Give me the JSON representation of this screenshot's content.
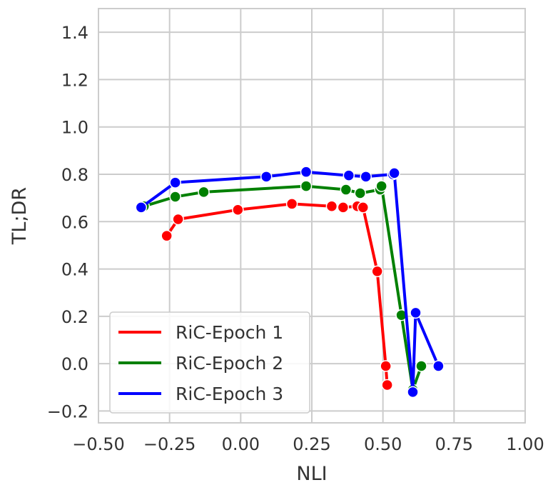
{
  "chart_data": {
    "type": "line",
    "xlabel": "NLI",
    "ylabel": "TL;DR",
    "xlim": [
      -0.5,
      1.0
    ],
    "ylim": [
      -0.25,
      1.5
    ],
    "xticks": [
      -0.5,
      -0.25,
      0.0,
      0.25,
      0.5,
      0.75,
      1.0
    ],
    "xtick_labels": [
      "−0.50",
      "−0.25",
      "0.00",
      "0.25",
      "0.50",
      "0.75",
      "1.00"
    ],
    "yticks": [
      -0.2,
      0.0,
      0.2,
      0.4,
      0.6,
      0.8,
      1.0,
      1.2,
      1.4
    ],
    "ytick_labels": [
      "−0.2",
      "0.0",
      "0.2",
      "0.4",
      "0.6",
      "0.8",
      "1.0",
      "1.2",
      "1.4"
    ],
    "grid": true,
    "legend_position": "bottom-left",
    "series": [
      {
        "name": "RiC-Epoch 1",
        "color": "#ff0000",
        "x": [
          -0.26,
          -0.22,
          -0.01,
          0.18,
          0.32,
          0.36,
          0.41,
          0.43,
          0.48,
          0.51,
          0.515
        ],
        "y": [
          0.54,
          0.61,
          0.65,
          0.675,
          0.665,
          0.66,
          0.665,
          0.66,
          0.39,
          -0.01,
          -0.09
        ]
      },
      {
        "name": "RiC-Epoch 2",
        "color": "#008000",
        "x": [
          -0.34,
          -0.23,
          -0.13,
          0.23,
          0.37,
          0.42,
          0.49,
          0.495,
          0.565,
          0.605,
          0.635
        ],
        "y": [
          0.665,
          0.705,
          0.725,
          0.75,
          0.735,
          0.72,
          0.735,
          0.75,
          0.205,
          -0.11,
          -0.01
        ]
      },
      {
        "name": "RiC-Epoch 3",
        "color": "#0000ff",
        "x": [
          -0.35,
          -0.23,
          0.09,
          0.23,
          0.38,
          0.44,
          0.535,
          0.54,
          0.605,
          0.615,
          0.695
        ],
        "y": [
          0.66,
          0.765,
          0.79,
          0.81,
          0.795,
          0.79,
          0.8,
          0.805,
          -0.12,
          0.215,
          -0.01
        ]
      }
    ]
  }
}
